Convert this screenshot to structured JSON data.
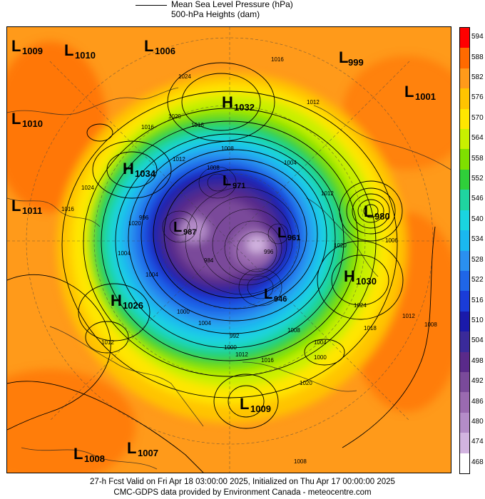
{
  "legend": {
    "mslp_label": "Mean Sea Level Pressure (hPa)",
    "height_label": "500-hPa Heights (dam)"
  },
  "colorbar": {
    "labels": [
      "594",
      "588",
      "582",
      "576",
      "570",
      "564",
      "558",
      "552",
      "546",
      "540",
      "534",
      "528",
      "522",
      "516",
      "510",
      "504",
      "498",
      "492",
      "486",
      "480",
      "474",
      "468"
    ],
    "colors": [
      "#ff0000",
      "#ff6a00",
      "#ff9a1a",
      "#ffc400",
      "#ffe600",
      "#c8f000",
      "#7fe000",
      "#2fcf3a",
      "#1fd4a0",
      "#1ad4e0",
      "#1ab8f0",
      "#2a90f0",
      "#1f66e8",
      "#1a3cd8",
      "#1a1aaa",
      "#3a2a9a",
      "#5a2a8a",
      "#7a4a9a",
      "#9a6ab0",
      "#b48cc8",
      "#d2b4e0",
      "#ffffff"
    ]
  },
  "pressure_centers": [
    {
      "type": "L",
      "value": "1009",
      "name": "low-1009-nw"
    },
    {
      "type": "L",
      "value": "1010",
      "name": "low-1010-north"
    },
    {
      "type": "L",
      "value": "1006",
      "name": "low-1006"
    },
    {
      "type": "L",
      "value": "999",
      "name": "low-999"
    },
    {
      "type": "L",
      "value": "1001",
      "name": "low-1001"
    },
    {
      "type": "H",
      "value": "1032",
      "name": "high-1032"
    },
    {
      "type": "L",
      "value": "1010",
      "name": "low-1010-west"
    },
    {
      "type": "H",
      "value": "1034",
      "name": "high-1034"
    },
    {
      "type": "L",
      "value": "1011",
      "name": "low-1011"
    },
    {
      "type": "L",
      "value": "971",
      "name": "low-971"
    },
    {
      "type": "L",
      "value": "980",
      "name": "low-980"
    },
    {
      "type": "L",
      "value": "987",
      "name": "low-987"
    },
    {
      "type": "L",
      "value": "961",
      "name": "low-961"
    },
    {
      "type": "H",
      "value": "1030",
      "name": "high-1030"
    },
    {
      "type": "L",
      "value": "946",
      "name": "low-946"
    },
    {
      "type": "H",
      "value": "1026",
      "name": "high-1026"
    },
    {
      "type": "L",
      "value": "1009",
      "name": "low-1009-south"
    },
    {
      "type": "L",
      "value": "1008",
      "name": "low-1008"
    },
    {
      "type": "L",
      "value": "1007",
      "name": "low-1007"
    }
  ],
  "isobar_labels": [
    "1016",
    "1024",
    "1012",
    "1020",
    "1016",
    "1016",
    "1008",
    "1012",
    "1004",
    "1008",
    "1016",
    "1024",
    "1012",
    "1020",
    "996",
    "1004",
    "1020",
    "1006",
    "1024",
    "1018",
    "1012",
    "1008",
    "1004",
    "1000",
    "1000",
    "1012",
    "1016",
    "1020",
    "1012",
    "992",
    "1008",
    "996",
    "984",
    "1004",
    "1000",
    "1004",
    "1008"
  ],
  "footer": {
    "line1": "27-h Fcst Valid on Fri Apr 18 03:00:00 2025, Initialized on Thu Apr 17 00:00:00 2025",
    "line2": "CMC-GDPS data provided by Environment Canada - meteocentre.com"
  }
}
